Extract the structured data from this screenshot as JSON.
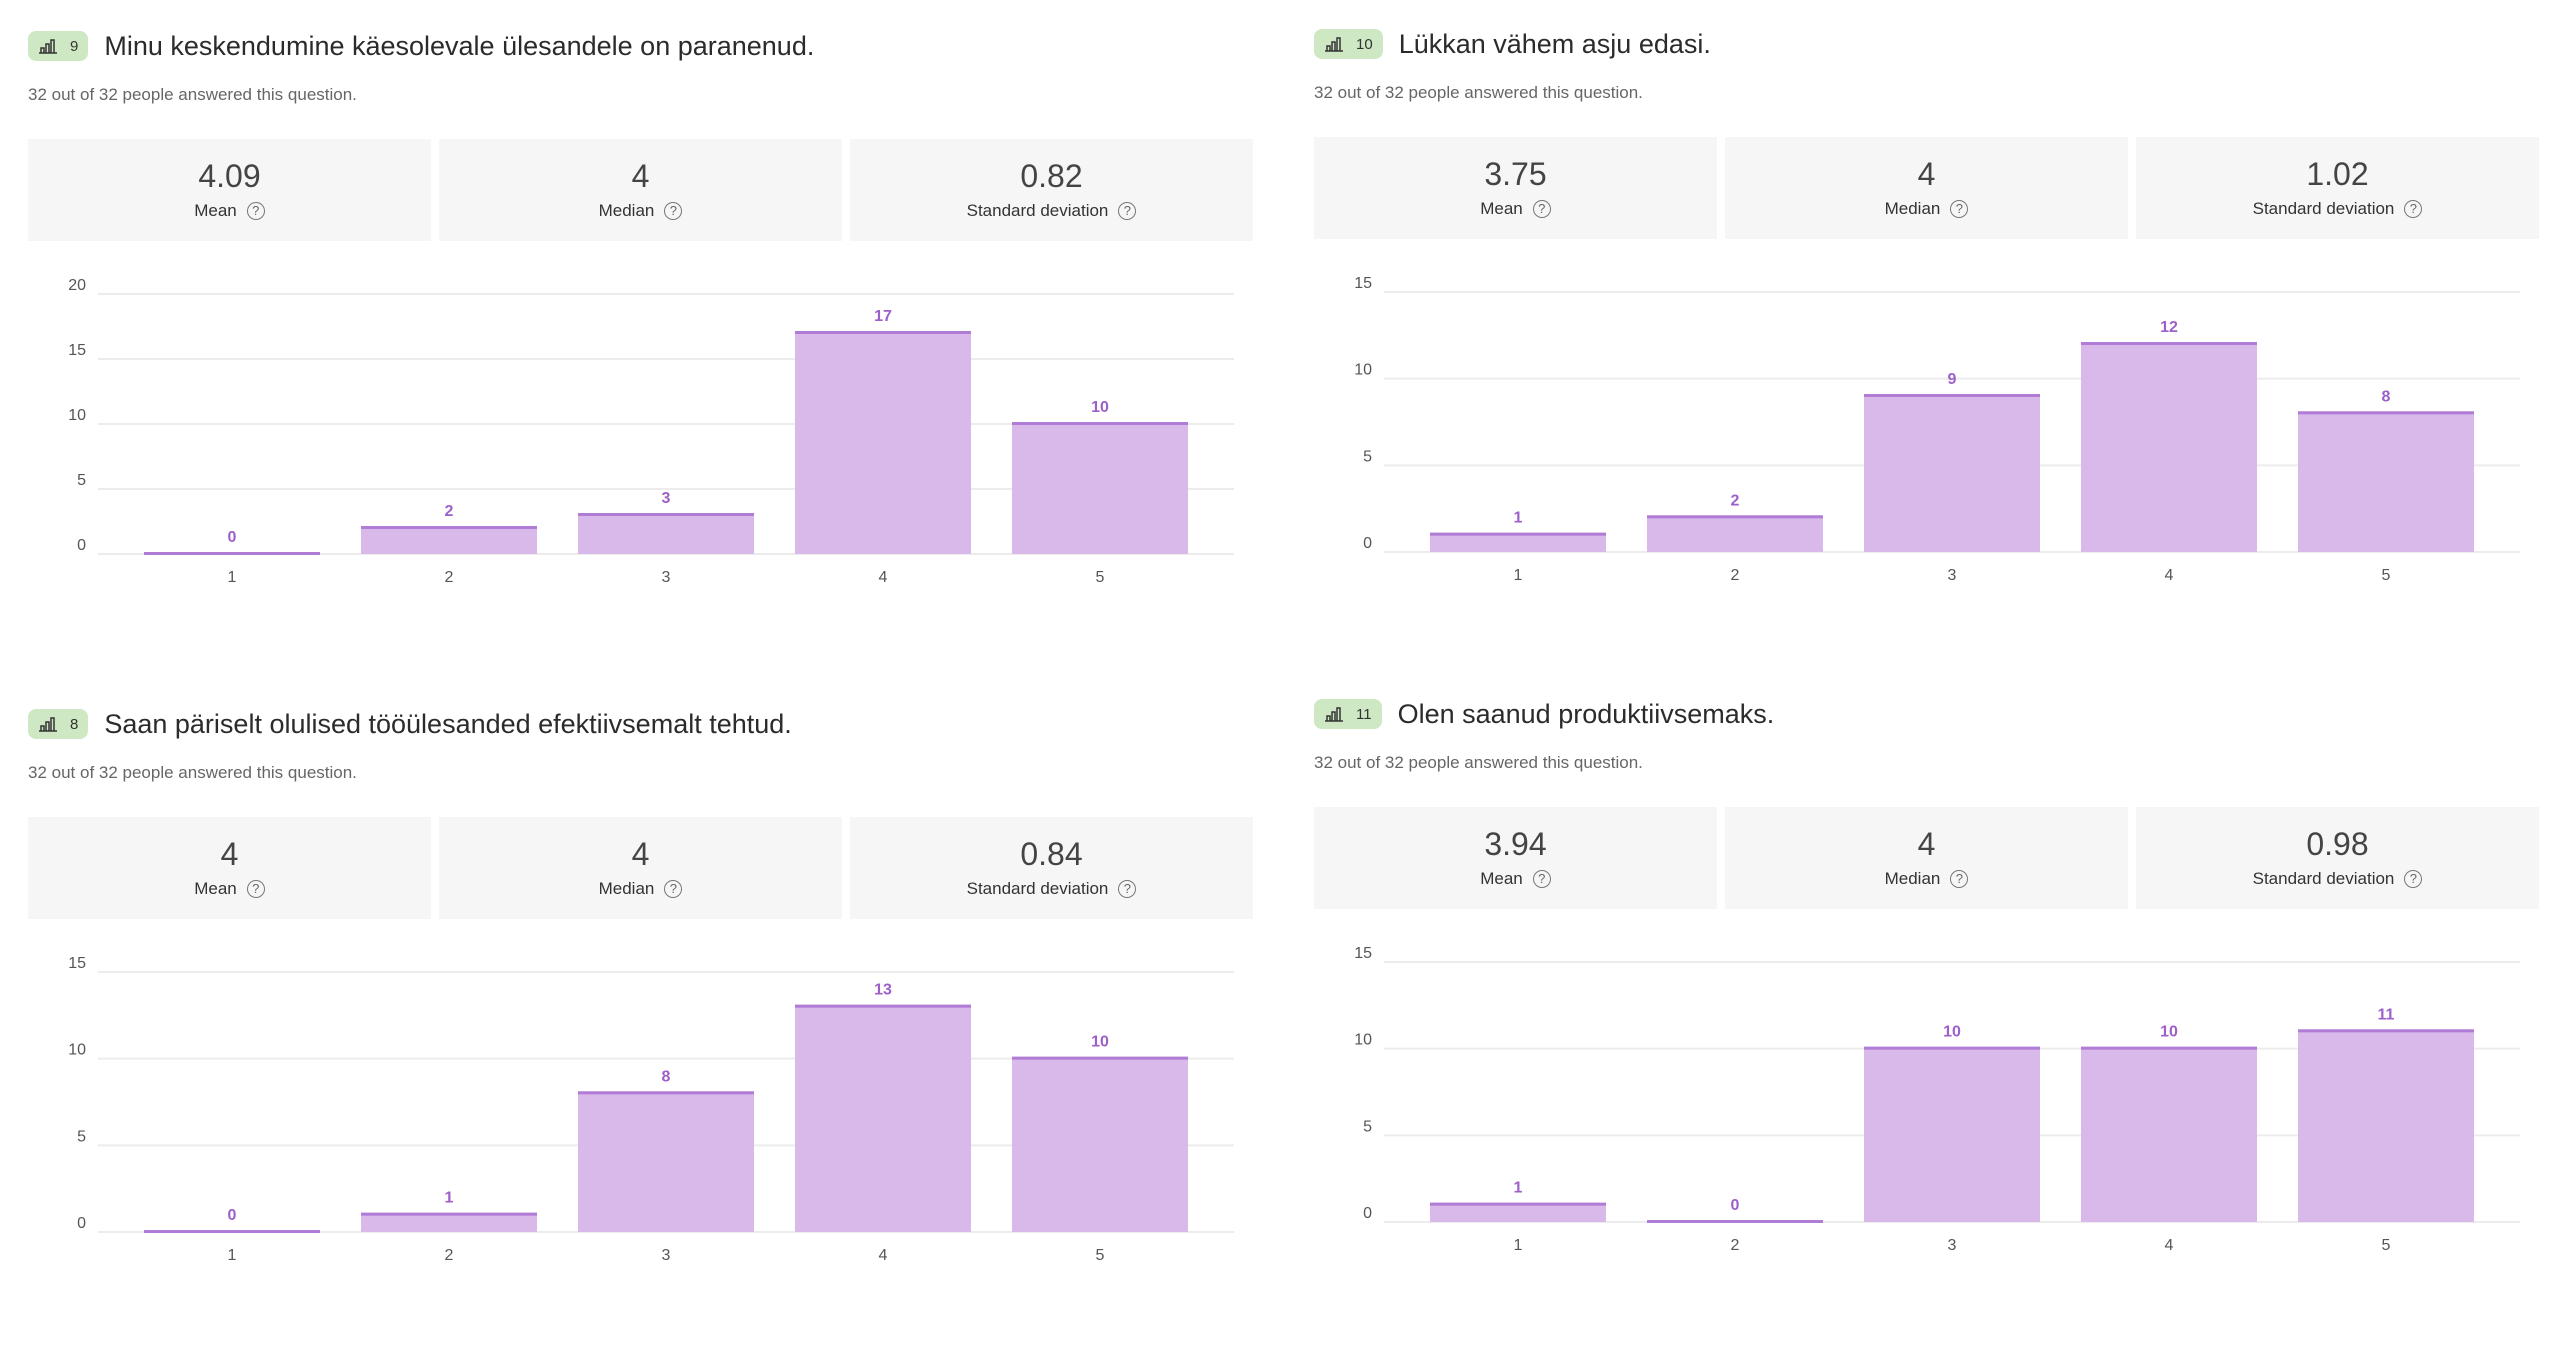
{
  "colors": {
    "badge": "#cfe8c4",
    "bar": "#d8b9ea",
    "bar_top": "#b07cd6",
    "value_label": "#9d5fc9",
    "grid": "#ececec"
  },
  "subtitle": "32 out of 32 people answered this question.",
  "stat_labels": {
    "mean": "Mean",
    "median": "Median",
    "sd": "Standard deviation"
  },
  "help_glyph": "?",
  "panels": [
    {
      "number": "9",
      "title": "Minu keskendumine käesolevale ülesandele on paranenud.",
      "mean": "4.09",
      "median": "4",
      "sd": "0.82"
    },
    {
      "number": "10",
      "title": "Lükkan vähem asju edasi.",
      "mean": "3.75",
      "median": "4",
      "sd": "1.02"
    },
    {
      "number": "8",
      "title": "Saan päriselt olulised tööülesanded efektiivsemalt tehtud.",
      "mean": "4",
      "median": "4",
      "sd": "0.84"
    },
    {
      "number": "11",
      "title": "Olen saanud produktiivsemaks.",
      "mean": "3.94",
      "median": "4",
      "sd": "0.98"
    }
  ],
  "chart_data": [
    {
      "type": "bar",
      "categories": [
        "1",
        "2",
        "3",
        "4",
        "5"
      ],
      "values": [
        0,
        2,
        3,
        17,
        10
      ],
      "ylim": [
        0,
        20
      ],
      "yticks": [
        0,
        5,
        10,
        15,
        20
      ]
    },
    {
      "type": "bar",
      "categories": [
        "1",
        "2",
        "3",
        "4",
        "5"
      ],
      "values": [
        1,
        2,
        9,
        12,
        8
      ],
      "ylim": [
        0,
        15
      ],
      "yticks": [
        0,
        5,
        10,
        15
      ]
    },
    {
      "type": "bar",
      "categories": [
        "1",
        "2",
        "3",
        "4",
        "5"
      ],
      "values": [
        0,
        1,
        8,
        13,
        10
      ],
      "ylim": [
        0,
        15
      ],
      "yticks": [
        0,
        5,
        10,
        15
      ]
    },
    {
      "type": "bar",
      "categories": [
        "1",
        "2",
        "3",
        "4",
        "5"
      ],
      "values": [
        1,
        0,
        10,
        10,
        11
      ],
      "ylim": [
        0,
        15
      ],
      "yticks": [
        0,
        5,
        10,
        15
      ]
    }
  ]
}
